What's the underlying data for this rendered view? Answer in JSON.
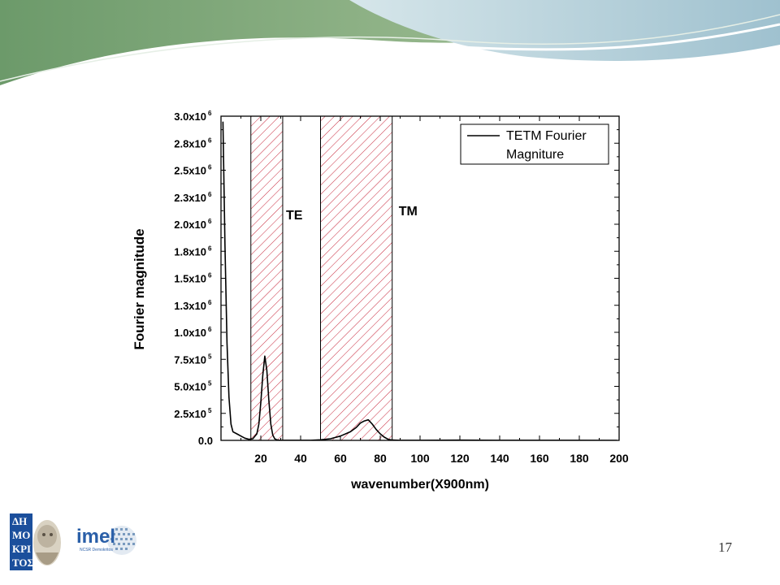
{
  "slide": {
    "number": "17"
  },
  "colors": {
    "hatch": "#c8283c",
    "line": "#000000",
    "banner_green": "#7fa878",
    "banner_blue": "#a9c7d3"
  },
  "logos": {
    "left": "demokritos-logo",
    "right": "imel-logo",
    "right_text": "imel",
    "right_subtext": "NCSR Demokritos"
  },
  "chart_data": {
    "type": "line",
    "xlabel": "wavenumber(X900nm)",
    "ylabel": "Fourier magnitude",
    "xlim": [
      0,
      200
    ],
    "ylim": [
      0,
      3000000
    ],
    "x_ticks": [
      20,
      40,
      60,
      80,
      100,
      120,
      140,
      160,
      180,
      200
    ],
    "y_ticks": [
      {
        "value": 0,
        "label": "0.0",
        "exp": ""
      },
      {
        "value": 250000,
        "label": "2.5x10",
        "exp": "5"
      },
      {
        "value": 500000,
        "label": "5.0x10",
        "exp": "5"
      },
      {
        "value": 750000,
        "label": "7.5x10",
        "exp": "5"
      },
      {
        "value": 1000000,
        "label": "1.0x10",
        "exp": "6"
      },
      {
        "value": 1250000,
        "label": "1.3x10",
        "exp": "6"
      },
      {
        "value": 1500000,
        "label": "1.5x10",
        "exp": "6"
      },
      {
        "value": 1750000,
        "label": "1.8x10",
        "exp": "6"
      },
      {
        "value": 2000000,
        "label": "2.0x10",
        "exp": "6"
      },
      {
        "value": 2250000,
        "label": "2.3x10",
        "exp": "6"
      },
      {
        "value": 2500000,
        "label": "2.5x10",
        "exp": "6"
      },
      {
        "value": 2750000,
        "label": "2.8x10",
        "exp": "6"
      },
      {
        "value": 3000000,
        "label": "3.0x10",
        "exp": "6"
      }
    ],
    "legend": {
      "placement": "top-right",
      "lines": [
        "TETM Fourier",
        "Magniture"
      ]
    },
    "regions": [
      {
        "label": "TE",
        "x_start": 15,
        "x_end": 31
      },
      {
        "label": "TM",
        "x_start": 50,
        "x_end": 86
      }
    ],
    "series": [
      {
        "name": "TETM Fourier Magniture",
        "x": [
          1,
          2,
          3,
          4,
          5,
          6,
          8,
          10,
          12,
          14,
          16,
          18,
          19,
          20,
          21,
          22,
          23,
          24,
          25,
          26,
          27,
          28,
          29,
          30,
          35,
          40,
          45,
          50,
          55,
          60,
          65,
          68,
          70,
          72,
          74,
          76,
          78,
          80,
          82,
          84,
          86,
          90,
          100,
          120,
          140,
          160,
          180,
          199
        ],
        "y": [
          2950000,
          1800000,
          900000,
          400000,
          150000,
          80000,
          60000,
          40000,
          20000,
          10000,
          15000,
          60000,
          150000,
          350000,
          600000,
          780000,
          650000,
          380000,
          150000,
          50000,
          15000,
          5000,
          2000,
          1000,
          1000,
          1000,
          1000,
          5000,
          15000,
          40000,
          80000,
          120000,
          160000,
          180000,
          190000,
          150000,
          100000,
          60000,
          30000,
          10000,
          3000,
          1000,
          1000,
          2000,
          1000,
          500,
          500,
          300
        ]
      }
    ]
  }
}
